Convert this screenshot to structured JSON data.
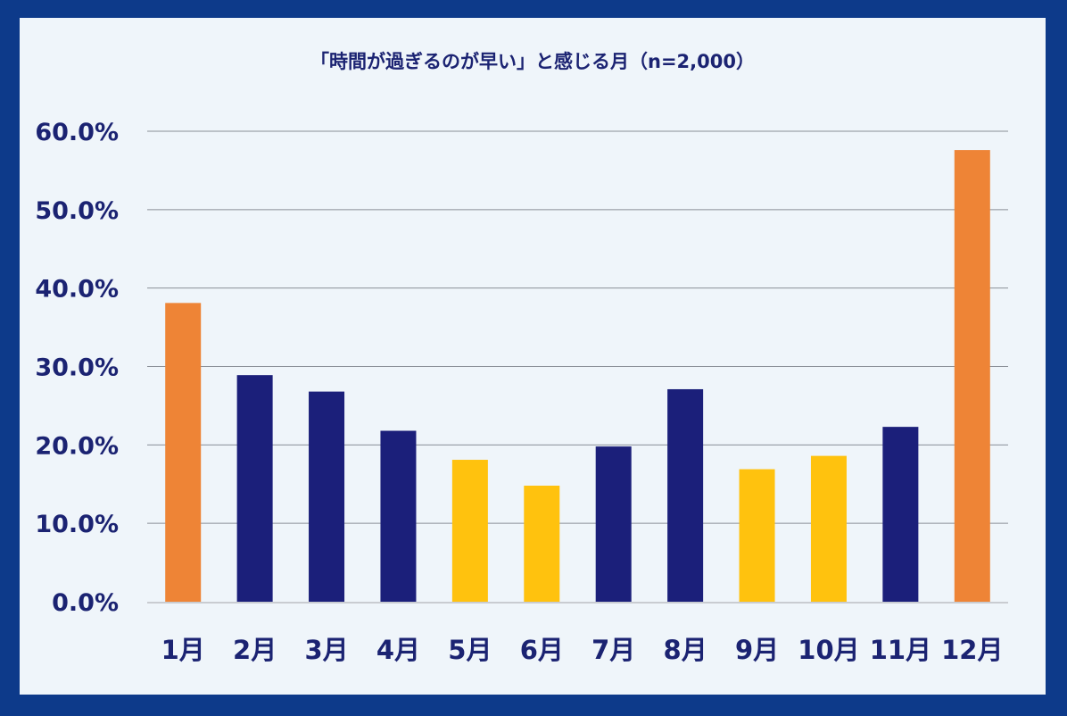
{
  "chart_data": {
    "type": "bar",
    "title": "「時間が過ぎるのが早い」と感じる月（n=2,000）",
    "xlabel": "",
    "ylabel": "",
    "categories": [
      "1月",
      "2月",
      "3月",
      "4月",
      "5月",
      "6月",
      "7月",
      "8月",
      "9月",
      "10月",
      "11月",
      "12月"
    ],
    "values": [
      38.1,
      28.9,
      26.8,
      21.8,
      18.1,
      14.8,
      19.8,
      27.1,
      16.9,
      18.6,
      22.3,
      57.6
    ],
    "ylim": [
      0,
      60
    ],
    "yticks": [
      "0.0%",
      "10.0%",
      "20.0%",
      "30.0%",
      "40.0%",
      "50.0%",
      "60.0%"
    ],
    "grid": true,
    "legend": "none",
    "colors": {
      "orange": "#ee8436",
      "navy": "#1b1f7a",
      "yellow": "#ffc20e",
      "text": "#1b2372",
      "frame": "#0d3a8a",
      "background": "#eff5fa",
      "grid": "#8a8f97",
      "axis": "#c9ccd1"
    },
    "bar_colors": [
      "orange",
      "navy",
      "navy",
      "navy",
      "yellow",
      "yellow",
      "navy",
      "navy",
      "yellow",
      "yellow",
      "navy",
      "orange"
    ]
  }
}
